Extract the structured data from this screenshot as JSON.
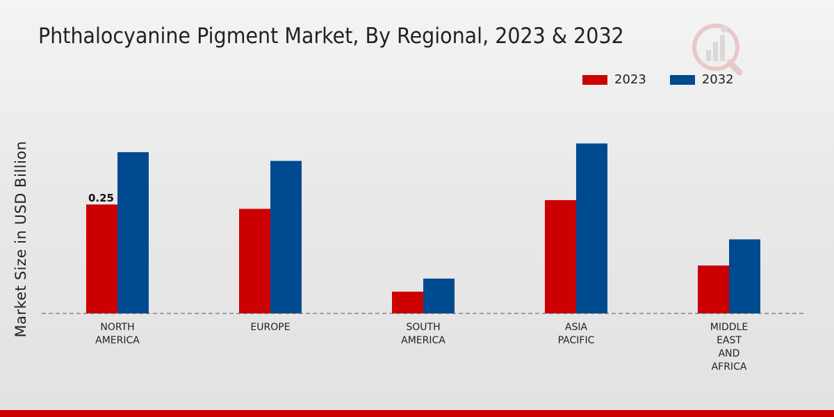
{
  "chart_data": {
    "type": "bar",
    "title": "Phthalocyanine Pigment Market, By Regional, 2023 & 2032",
    "ylabel": "Market Size in USD Billion",
    "xlabel": "",
    "categories": [
      [
        "NORTH",
        "AMERICA"
      ],
      [
        "EUROPE"
      ],
      [
        "SOUTH",
        "AMERICA"
      ],
      [
        "ASIA",
        "PACIFIC"
      ],
      [
        "MIDDLE",
        "EAST",
        "AND",
        "AFRICA"
      ]
    ],
    "series": [
      {
        "name": "2023",
        "color": "#cc0000",
        "values": [
          0.25,
          0.24,
          0.05,
          0.26,
          0.11
        ]
      },
      {
        "name": "2032",
        "color": "#004a8f",
        "values": [
          0.37,
          0.35,
          0.08,
          0.39,
          0.17
        ]
      }
    ],
    "data_labels": [
      {
        "series": 0,
        "index": 0,
        "text": "0.25"
      }
    ],
    "ylim": [
      0,
      0.48
    ],
    "grid": false,
    "legend": "top-right"
  }
}
